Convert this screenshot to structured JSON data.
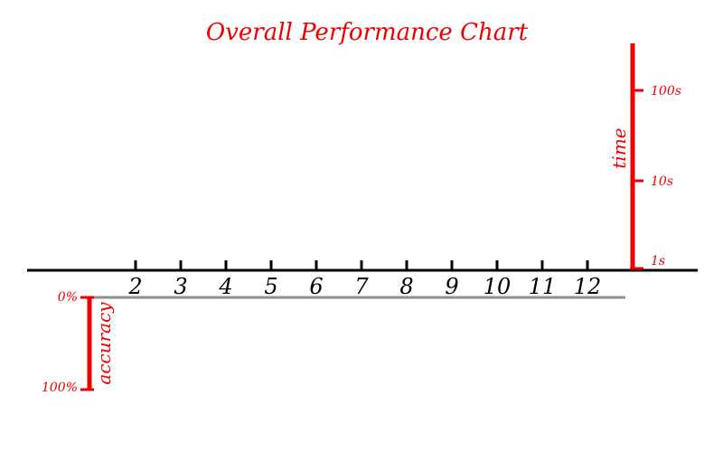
{
  "colors": {
    "accent": "#ee0000",
    "axis": "#000000",
    "accuracy_baseline": "#8f8f8f"
  },
  "chart_data": {
    "type": "line",
    "title": "Overall Performance Chart",
    "x": {
      "ticks": [
        "2",
        "3",
        "4",
        "5",
        "6",
        "7",
        "8",
        "9",
        "10",
        "11",
        "12"
      ],
      "range": [
        1,
        12
      ]
    },
    "time_axis": {
      "label": "time",
      "scale": "log",
      "ticks": [
        "1s",
        "10s",
        "100s"
      ],
      "range": [
        1,
        100
      ]
    },
    "accuracy_axis": {
      "label": "accuracy",
      "direction": "downward",
      "ticks": [
        "0%",
        "100%"
      ],
      "range": [
        0,
        100
      ]
    },
    "series": [],
    "grid": false
  }
}
